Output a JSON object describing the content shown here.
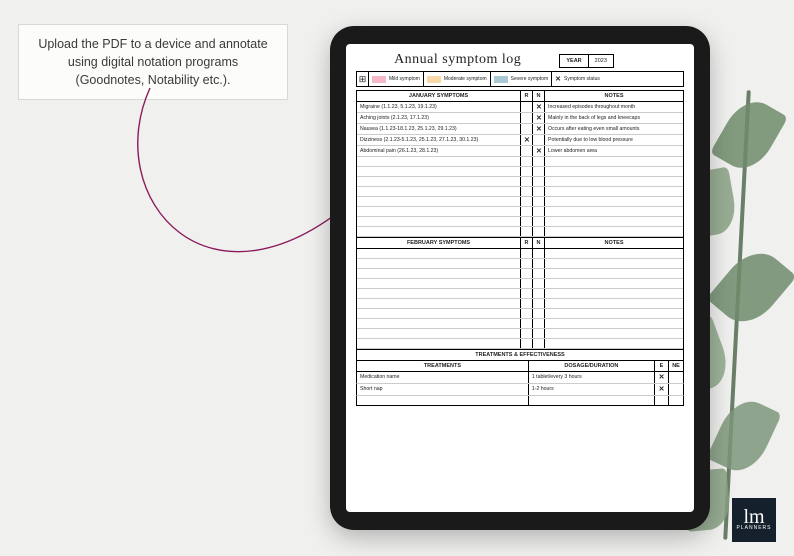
{
  "callout_text": "Upload the PDF to a device and annotate using digital notation programs (Goodnotes, Notability etc.).",
  "arrow_color": "#8b1a5c",
  "doc": {
    "title": "Annual symptom log",
    "year_label": "YEAR",
    "year_value": "2023",
    "legend": {
      "mild": {
        "color": "#f5b8c8",
        "label": "Mild symptom"
      },
      "moderate": {
        "color": "#f9d9a8",
        "label": "Moderate symptom"
      },
      "severe": {
        "color": "#a9c8d4",
        "label": "Severe symptom"
      },
      "status": {
        "mark": "✕",
        "label": "Symptom status"
      }
    },
    "months": [
      {
        "heading": "JANUARY SYMPTOMS",
        "col_r": "R",
        "col_n": "N",
        "col_notes": "NOTES",
        "rows": [
          {
            "symptom": "Migraine (1.1.23, 5.1.23, 19.1.23)",
            "r": "",
            "n": "✕",
            "note": "Increased episodes throughout month"
          },
          {
            "symptom": "Aching joints (2.1.23, 17.1.23)",
            "r": "",
            "n": "✕",
            "note": "Mainly in the back of legs and kneecaps"
          },
          {
            "symptom": "Nausea (1.1.23-18.1.23, 25.1.23, 29.1.23)",
            "r": "",
            "n": "✕",
            "note": "Occurs after eating even small amounts"
          },
          {
            "symptom": "Dizziness (2.1.23-5.1.23, 25.1.23, 27.1.23, 30.1.23)",
            "r": "✕",
            "n": "",
            "note": "Potentially due to low blood pressure"
          },
          {
            "symptom": "Abdominal pain (26.1.23, 28.1.23)",
            "r": "",
            "n": "✕",
            "note": "Lower abdomen area"
          }
        ],
        "blank_rows": 8
      },
      {
        "heading": "FEBRUARY SYMPTOMS",
        "col_r": "R",
        "col_n": "N",
        "col_notes": "NOTES",
        "rows": [],
        "blank_rows": 10
      }
    ],
    "treatments": {
      "title": "TREATMENTS & EFFECTIVENESS",
      "col_t": "TREATMENTS",
      "col_d": "DOSAGE/DURATION",
      "col_e": "E",
      "col_ne": "NE",
      "rows": [
        {
          "t": "Medication name",
          "d": "1 tablet/every 3 hours",
          "e": "✕",
          "ne": ""
        },
        {
          "t": "Short nap",
          "d": "1-2 hours",
          "e": "✕",
          "ne": ""
        }
      ],
      "blank_rows": 1
    }
  },
  "logo": {
    "initials": "lm",
    "sub": "PLANNERS"
  }
}
